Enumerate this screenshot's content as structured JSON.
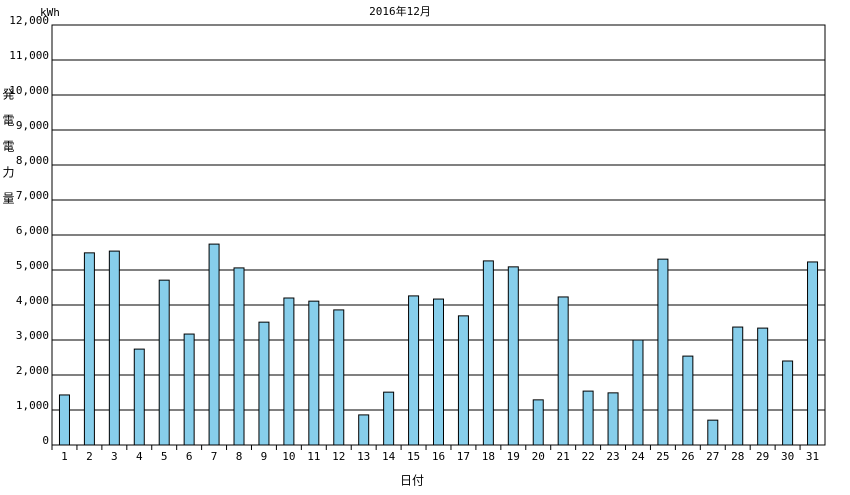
{
  "chart_data": {
    "type": "bar",
    "title": "2016年12月",
    "unit": "kWh",
    "y_label": "発電電力量",
    "x_label": "日付",
    "categories": [
      "1",
      "2",
      "3",
      "4",
      "5",
      "6",
      "7",
      "8",
      "9",
      "10",
      "11",
      "12",
      "13",
      "14",
      "15",
      "16",
      "17",
      "18",
      "19",
      "20",
      "21",
      "22",
      "23",
      "24",
      "25",
      "26",
      "27",
      "28",
      "29",
      "30",
      "31"
    ],
    "values": [
      1430,
      5490,
      5540,
      2740,
      4710,
      3170,
      5740,
      5060,
      3510,
      4200,
      4110,
      3860,
      860,
      1510,
      4260,
      4170,
      3690,
      5260,
      5090,
      1290,
      4230,
      1540,
      1490,
      3000,
      5310,
      2540,
      710,
      3370,
      3340,
      2400,
      5230
    ],
    "color": "#87ceeb",
    "ylim": [
      0,
      12000
    ],
    "yticks": [
      0,
      {
        "value": 1000,
        "label": "1,000"
      },
      {
        "value": 2000,
        "label": "2,000"
      },
      {
        "value": 3000,
        "label": "3,000"
      },
      {
        "value": 4000,
        "label": "4,000"
      },
      {
        "value": 5000,
        "label": "5,000"
      },
      {
        "value": 6000,
        "label": "6,000"
      },
      {
        "value": 7000,
        "label": "7,000"
      },
      {
        "value": 8000,
        "label": "8,000"
      },
      {
        "value": 9000,
        "label": "9,000"
      },
      {
        "value": 10000,
        "label": "10,000"
      },
      {
        "value": 11000,
        "label": "11,000"
      },
      {
        "value": 12000,
        "label": "12,000"
      }
    ],
    "grid": true
  }
}
